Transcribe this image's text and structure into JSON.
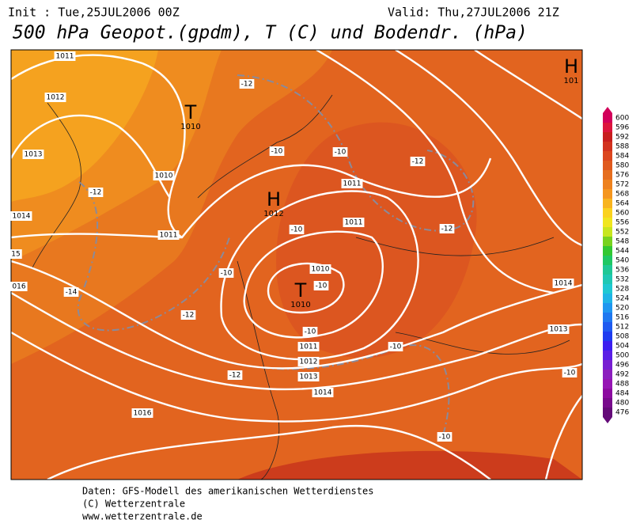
{
  "header": {
    "init": "Init : Tue,25JUL2006 00Z",
    "valid": "Valid: Thu,27JUL2006 21Z",
    "title": "500 hPa Geopot.(gpdm), T (C) und Bodendr. (hPa)"
  },
  "map": {
    "pressure_labels": [
      "1011",
      "1012",
      "1013",
      "1010",
      "1014",
      "1011",
      "1011",
      "1011",
      "1010",
      "1011",
      "1012",
      "1013",
      "1014",
      "1016",
      "1013",
      "1014",
      "15",
      "016"
    ],
    "temperature_labels": [
      "-12",
      "-10",
      "-10",
      "-12",
      "-12",
      "-12",
      "-10",
      "-10",
      "-10",
      "-14",
      "-12",
      "-10",
      "-10",
      "-12",
      "-10",
      "-10"
    ],
    "centers": [
      {
        "symbol": "T",
        "value": "1010"
      },
      {
        "symbol": "H",
        "value": "1012"
      },
      {
        "symbol": "T",
        "value": "1010"
      },
      {
        "symbol": "H",
        "value": "101"
      }
    ]
  },
  "legend": {
    "levels": [
      600,
      596,
      592,
      588,
      584,
      580,
      576,
      572,
      568,
      564,
      560,
      556,
      552,
      548,
      544,
      540,
      536,
      532,
      528,
      524,
      520,
      516,
      512,
      508,
      504,
      500,
      496,
      492,
      488,
      484,
      480,
      476
    ],
    "colors": [
      "#d2005a",
      "#dc143c",
      "#c81e1e",
      "#d2321e",
      "#dc461e",
      "#e05a1e",
      "#e66e1e",
      "#ee821e",
      "#f5961e",
      "#f8b41e",
      "#fad21e",
      "#f0e61e",
      "#c8e61e",
      "#78d21e",
      "#32c832",
      "#1ec864",
      "#1ec896",
      "#1ec8b4",
      "#1ec8d2",
      "#1eb4e6",
      "#1e96f0",
      "#1e78f0",
      "#1e5af0",
      "#1e3cf0",
      "#3c1ef0",
      "#5a1ee6",
      "#781ed2",
      "#8c1ebe",
      "#9614b4",
      "#8c0aa0",
      "#780a8c",
      "#640a78"
    ]
  },
  "footer": {
    "lines": [
      "Daten: GFS-Modell des amerikanischen Wetterdienstes",
      "(C) Wetterzentrale",
      "www.wetterzentrale.de"
    ]
  }
}
